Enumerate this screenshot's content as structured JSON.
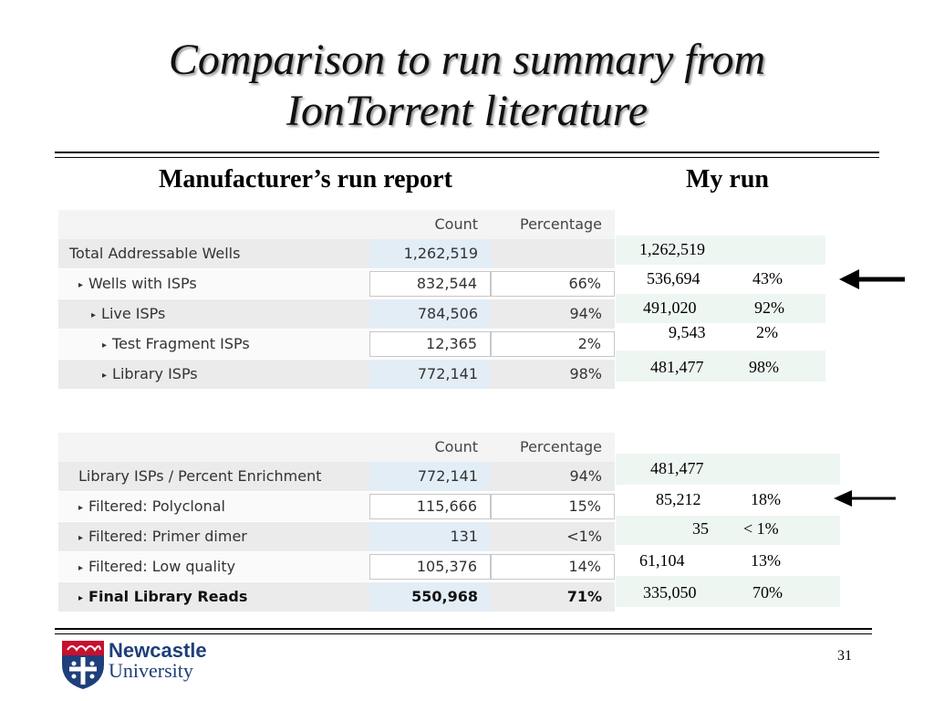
{
  "slide": {
    "title_line1": "Comparison to run summary from",
    "title_line2": "IonTorrent literature",
    "header_left": "Manufacturer’s run report",
    "header_right": "My run",
    "page_number": "31"
  },
  "logo": {
    "line1": "Newcastle",
    "line2": "University"
  },
  "table1": {
    "col_count": "Count",
    "col_pct": "Percentage",
    "rows": [
      {
        "label": "Total Addressable Wells",
        "count": "1,262,519",
        "pct": ""
      },
      {
        "label": "Wells with ISPs",
        "count": "832,544",
        "pct": "66%"
      },
      {
        "label": "Live ISPs",
        "count": "784,506",
        "pct": "94%"
      },
      {
        "label": "Test Fragment ISPs",
        "count": "12,365",
        "pct": "2%"
      },
      {
        "label": "Library ISPs",
        "count": "772,141",
        "pct": "98%"
      }
    ]
  },
  "table2": {
    "col_count": "Count",
    "col_pct": "Percentage",
    "rows": [
      {
        "label": "Library ISPs / Percent Enrichment",
        "count": "772,141",
        "pct": "94%"
      },
      {
        "label": "Filtered: Polyclonal",
        "count": "115,666",
        "pct": "15%"
      },
      {
        "label": "Filtered: Primer dimer",
        "count": "131",
        "pct": "<1%"
      },
      {
        "label": "Filtered: Low quality",
        "count": "105,376",
        "pct": "14%"
      },
      {
        "label": "Final Library Reads",
        "count": "550,968",
        "pct": "71%"
      }
    ]
  },
  "myrun1": [
    {
      "count": "1,262,519",
      "pct": ""
    },
    {
      "count": "536,694",
      "pct": "43%"
    },
    {
      "count": "491,020",
      "pct": "92%"
    },
    {
      "count": "9,543",
      "pct": "2%"
    },
    {
      "count": "481,477",
      "pct": "98%"
    }
  ],
  "myrun2": [
    {
      "count": "481,477",
      "pct": ""
    },
    {
      "count": "85,212",
      "pct": "18%"
    },
    {
      "count": "35",
      "pct": "< 1%"
    },
    {
      "count": "61,104",
      "pct": "13%"
    },
    {
      "count": "335,050",
      "pct": "70%"
    }
  ]
}
